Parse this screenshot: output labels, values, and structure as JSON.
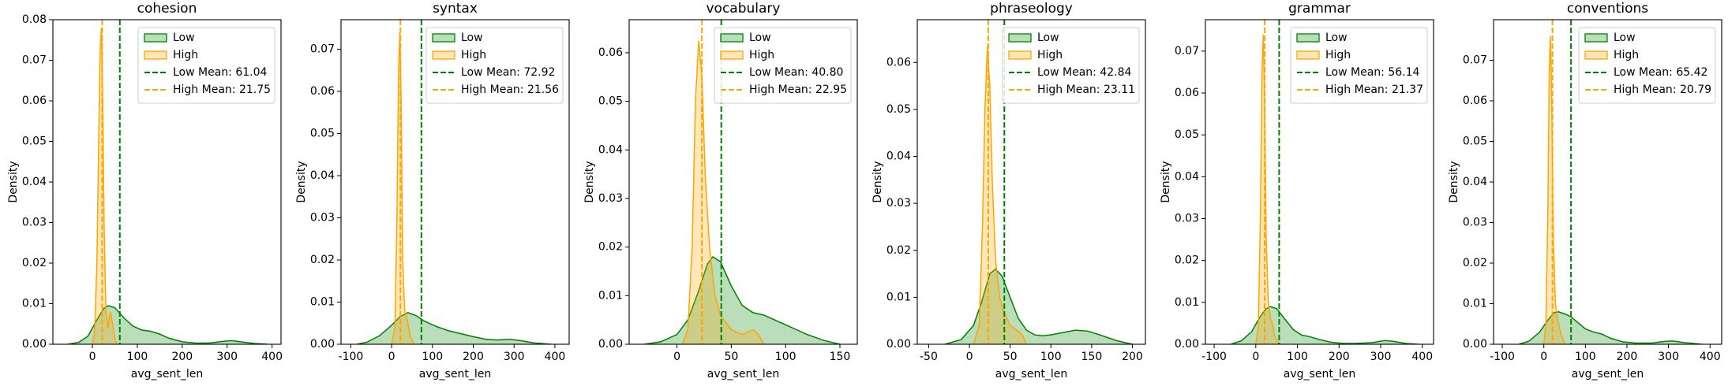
{
  "chart_data": [
    {
      "type": "density",
      "title": "cohesion",
      "x_label": "avg_sent_len",
      "y_label": "Density",
      "xlim": [
        -88,
        420
      ],
      "xticks": [
        0,
        100,
        200,
        300,
        400
      ],
      "ylim": [
        0,
        0.08
      ],
      "yticks": [
        {
          "value": 0,
          "label": "0.00"
        },
        {
          "value": 0.01,
          "label": "0.01"
        },
        {
          "value": 0.02,
          "label": "0.02"
        },
        {
          "value": 0.03,
          "label": "0.03"
        },
        {
          "value": 0.04,
          "label": "0.04"
        },
        {
          "value": 0.05,
          "label": "0.05"
        },
        {
          "value": 0.06,
          "label": "0.06"
        },
        {
          "value": 0.07,
          "label": "0.07"
        },
        {
          "value": 0.08,
          "label": "0.08"
        }
      ],
      "legend": "upper right",
      "series": [
        {
          "name": "Low",
          "color": "#008000",
          "x": [
            -55,
            -30,
            -10,
            10,
            25,
            35,
            50,
            70,
            90,
            110,
            130,
            150,
            170,
            200,
            230,
            260,
            290,
            310,
            330,
            360,
            390
          ],
          "values": [
            0,
            0.0005,
            0.002,
            0.006,
            0.0088,
            0.0095,
            0.009,
            0.0065,
            0.0045,
            0.0035,
            0.0032,
            0.0025,
            0.0015,
            0.0006,
            0.0003,
            0.0003,
            0.0007,
            0.0009,
            0.0006,
            0.0002,
            0
          ]
        },
        {
          "name": "High",
          "color": "#ffa500",
          "x": [
            0,
            5,
            10,
            14,
            17,
            20,
            23,
            26,
            30,
            35,
            40,
            45,
            50,
            55
          ],
          "values": [
            0,
            0.003,
            0.02,
            0.05,
            0.072,
            0.078,
            0.06,
            0.03,
            0.008,
            0.004,
            0.008,
            0.005,
            0.001,
            0
          ]
        }
      ],
      "vlines": [
        {
          "name": "Low Mean: 61.04",
          "value": 61.04,
          "color": "#008000"
        },
        {
          "name": "High Mean: 21.75",
          "value": 21.75,
          "color": "#ffa500"
        }
      ]
    },
    {
      "type": "density",
      "title": "syntax",
      "x_label": "avg_sent_len",
      "y_label": "Density",
      "xlim": [
        -124,
        435
      ],
      "xticks": [
        -100,
        0,
        100,
        200,
        300,
        400
      ],
      "ylim": [
        0,
        0.077
      ],
      "yticks": [
        {
          "value": 0,
          "label": "0.00"
        },
        {
          "value": 0.01,
          "label": "0.01"
        },
        {
          "value": 0.02,
          "label": "0.02"
        },
        {
          "value": 0.03,
          "label": "0.03"
        },
        {
          "value": 0.04,
          "label": "0.04"
        },
        {
          "value": 0.05,
          "label": "0.05"
        },
        {
          "value": 0.06,
          "label": "0.06"
        },
        {
          "value": 0.07,
          "label": "0.07"
        }
      ],
      "legend": "upper right",
      "series": [
        {
          "name": "Low",
          "color": "#008000",
          "x": [
            -85,
            -60,
            -30,
            0,
            20,
            40,
            60,
            80,
            110,
            140,
            170,
            200,
            230,
            260,
            290,
            320,
            350,
            390
          ],
          "values": [
            0,
            0.0005,
            0.002,
            0.0045,
            0.0065,
            0.0075,
            0.0068,
            0.0055,
            0.0042,
            0.0032,
            0.0025,
            0.0018,
            0.0012,
            0.001,
            0.0012,
            0.0008,
            0.0003,
            0
          ]
        },
        {
          "name": "High",
          "color": "#ffa500",
          "x": [
            0,
            8,
            13,
            17,
            20,
            23,
            27,
            32,
            38,
            45,
            55
          ],
          "values": [
            0,
            0.004,
            0.03,
            0.065,
            0.074,
            0.06,
            0.02,
            0.008,
            0.006,
            0.002,
            0
          ]
        }
      ],
      "vlines": [
        {
          "name": "Low Mean: 72.92",
          "value": 72.92,
          "color": "#008000"
        },
        {
          "name": "High Mean: 21.56",
          "value": 21.56,
          "color": "#ffa500"
        }
      ]
    },
    {
      "type": "density",
      "title": "vocabulary",
      "x_label": "avg_sent_len",
      "y_label": "Density",
      "xlim": [
        -44,
        166
      ],
      "xticks": [
        0,
        50,
        100,
        150
      ],
      "ylim": [
        0,
        0.0668
      ],
      "yticks": [
        {
          "value": 0,
          "label": "0.00"
        },
        {
          "value": 0.01,
          "label": "0.01"
        },
        {
          "value": 0.02,
          "label": "0.02"
        },
        {
          "value": 0.03,
          "label": "0.03"
        },
        {
          "value": 0.04,
          "label": "0.04"
        },
        {
          "value": 0.05,
          "label": "0.05"
        },
        {
          "value": 0.06,
          "label": "0.06"
        }
      ],
      "legend": "upper right",
      "series": [
        {
          "name": "Low",
          "color": "#008000",
          "x": [
            -30,
            -15,
            0,
            10,
            20,
            28,
            33,
            40,
            50,
            60,
            70,
            80,
            90,
            100,
            110,
            120,
            135,
            150
          ],
          "values": [
            0,
            0.0005,
            0.002,
            0.005,
            0.011,
            0.0165,
            0.018,
            0.017,
            0.012,
            0.008,
            0.0065,
            0.006,
            0.005,
            0.004,
            0.003,
            0.002,
            0.0008,
            0
          ]
        },
        {
          "name": "High",
          "color": "#ffa500",
          "x": [
            5,
            10,
            14,
            17,
            20,
            23,
            26,
            30,
            35,
            40,
            50,
            60,
            70,
            75,
            80
          ],
          "values": [
            0,
            0.003,
            0.02,
            0.05,
            0.0625,
            0.055,
            0.035,
            0.02,
            0.01,
            0.006,
            0.003,
            0.002,
            0.003,
            0.002,
            0
          ]
        }
      ],
      "vlines": [
        {
          "name": "Low Mean: 40.80",
          "value": 40.8,
          "color": "#008000"
        },
        {
          "name": "High Mean: 22.95",
          "value": 22.95,
          "color": "#ffa500"
        }
      ]
    },
    {
      "type": "density",
      "title": "phraseology",
      "x_label": "avg_sent_len",
      "y_label": "Density",
      "xlim": [
        -64,
        216
      ],
      "xticks": [
        -50,
        0,
        50,
        100,
        150,
        200
      ],
      "ylim": [
        0,
        0.0691
      ],
      "yticks": [
        {
          "value": 0,
          "label": "0.00"
        },
        {
          "value": 0.01,
          "label": "0.01"
        },
        {
          "value": 0.02,
          "label": "0.02"
        },
        {
          "value": 0.03,
          "label": "0.03"
        },
        {
          "value": 0.04,
          "label": "0.04"
        },
        {
          "value": 0.05,
          "label": "0.05"
        },
        {
          "value": 0.06,
          "label": "0.06"
        }
      ],
      "legend": "upper right",
      "series": [
        {
          "name": "Low",
          "color": "#008000",
          "x": [
            -30,
            -10,
            5,
            15,
            25,
            32,
            40,
            50,
            60,
            70,
            80,
            90,
            100,
            115,
            130,
            145,
            160,
            180,
            200
          ],
          "values": [
            0,
            0.001,
            0.004,
            0.009,
            0.015,
            0.016,
            0.0145,
            0.01,
            0.0055,
            0.003,
            0.002,
            0.0018,
            0.002,
            0.0025,
            0.003,
            0.0028,
            0.002,
            0.0008,
            0
          ]
        },
        {
          "name": "High",
          "color": "#ffa500",
          "x": [
            5,
            12,
            16,
            19,
            22,
            25,
            28,
            32,
            37,
            42,
            50,
            58,
            65,
            70
          ],
          "values": [
            0,
            0.004,
            0.025,
            0.05,
            0.0635,
            0.055,
            0.035,
            0.018,
            0.01,
            0.007,
            0.004,
            0.003,
            0.002,
            0
          ]
        }
      ],
      "vlines": [
        {
          "name": "Low Mean: 42.84",
          "value": 42.84,
          "color": "#008000"
        },
        {
          "name": "High Mean: 23.11",
          "value": 23.11,
          "color": "#ffa500"
        }
      ]
    },
    {
      "type": "density",
      "title": "grammar",
      "x_label": "avg_sent_len",
      "y_label": "Density",
      "xlim": [
        -121,
        427
      ],
      "xticks": [
        -100,
        0,
        100,
        200,
        300,
        400
      ],
      "ylim": [
        0,
        0.0775
      ],
      "yticks": [
        {
          "value": 0,
          "label": "0.00"
        },
        {
          "value": 0.01,
          "label": "0.01"
        },
        {
          "value": 0.02,
          "label": "0.02"
        },
        {
          "value": 0.03,
          "label": "0.03"
        },
        {
          "value": 0.04,
          "label": "0.04"
        },
        {
          "value": 0.05,
          "label": "0.05"
        },
        {
          "value": 0.06,
          "label": "0.06"
        },
        {
          "value": 0.07,
          "label": "0.07"
        }
      ],
      "legend": "upper right",
      "series": [
        {
          "name": "Low",
          "color": "#008000",
          "x": [
            -60,
            -35,
            -10,
            10,
            25,
            35,
            50,
            70,
            90,
            110,
            130,
            150,
            180,
            210,
            240,
            280,
            310,
            330,
            360,
            390
          ],
          "values": [
            0,
            0.0008,
            0.003,
            0.0065,
            0.0085,
            0.009,
            0.0085,
            0.006,
            0.0035,
            0.0022,
            0.0018,
            0.0012,
            0.0005,
            0.0002,
            0.0002,
            0.0004,
            0.0009,
            0.0007,
            0.0002,
            0
          ]
        },
        {
          "name": "High",
          "color": "#ffa500",
          "x": [
            0,
            6,
            11,
            15,
            18,
            21,
            25,
            30,
            35,
            40,
            45,
            55
          ],
          "values": [
            0,
            0.004,
            0.03,
            0.065,
            0.074,
            0.06,
            0.025,
            0.01,
            0.006,
            0.005,
            0.002,
            0
          ]
        }
      ],
      "vlines": [
        {
          "name": "Low Mean: 56.14",
          "value": 56.14,
          "color": "#008000"
        },
        {
          "name": "High Mean: 21.37",
          "value": 21.37,
          "color": "#ffa500"
        }
      ]
    },
    {
      "type": "density",
      "title": "conventions",
      "x_label": "avg_sent_len",
      "y_label": "Density",
      "xlim": [
        -121,
        428
      ],
      "xticks": [
        -100,
        0,
        100,
        200,
        300,
        400
      ],
      "ylim": [
        0,
        0.08
      ],
      "yticks": [
        {
          "value": 0,
          "label": "0.00"
        },
        {
          "value": 0.01,
          "label": "0.01"
        },
        {
          "value": 0.02,
          "label": "0.02"
        },
        {
          "value": 0.03,
          "label": "0.03"
        },
        {
          "value": 0.04,
          "label": "0.04"
        },
        {
          "value": 0.05,
          "label": "0.05"
        },
        {
          "value": 0.06,
          "label": "0.06"
        },
        {
          "value": 0.07,
          "label": "0.07"
        }
      ],
      "legend": "upper right",
      "series": [
        {
          "name": "Low",
          "color": "#008000",
          "x": [
            -60,
            -35,
            -10,
            10,
            25,
            35,
            50,
            65,
            80,
            100,
            120,
            140,
            160,
            190,
            220,
            260,
            290,
            310,
            340,
            380
          ],
          "values": [
            0,
            0.0008,
            0.003,
            0.006,
            0.0078,
            0.008,
            0.0075,
            0.0068,
            0.0055,
            0.0038,
            0.003,
            0.0025,
            0.0015,
            0.0006,
            0.0003,
            0.0003,
            0.0007,
            0.0008,
            0.0004,
            0
          ]
        },
        {
          "name": "High",
          "color": "#ffa500",
          "x": [
            0,
            5,
            10,
            13,
            16,
            19,
            23,
            28,
            33,
            40,
            50
          ],
          "values": [
            0,
            0.005,
            0.035,
            0.068,
            0.076,
            0.06,
            0.025,
            0.01,
            0.006,
            0.003,
            0
          ]
        }
      ],
      "vlines": [
        {
          "name": "Low Mean: 65.42",
          "value": 65.42,
          "color": "#008000"
        },
        {
          "name": "High Mean: 20.79",
          "value": 20.79,
          "color": "#ffa500"
        }
      ]
    }
  ]
}
